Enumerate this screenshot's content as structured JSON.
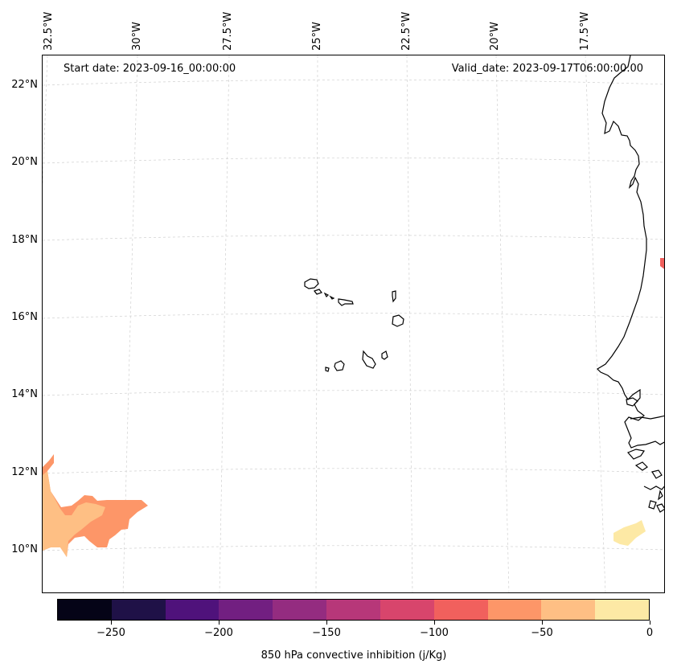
{
  "header": {
    "start_date": "Start date: 2023-09-16_00:00:00",
    "valid_date": "Valid_date: 2023-09-17T06:00:00.00"
  },
  "map": {
    "lon_labels": [
      "32.5°W",
      "30°W",
      "27.5°W",
      "25°W",
      "22.5°W",
      "20°W",
      "17.5°W"
    ],
    "lat_labels": [
      "22°N",
      "20°N",
      "18°N",
      "16°N",
      "14°N",
      "12°N",
      "10°N"
    ],
    "gridlines": "dashed light gray",
    "coastline_color": "#000000"
  },
  "colorbar": {
    "label": "850 hPa convective inhibition (j/Kg)",
    "levels": [
      -275,
      -250,
      -225,
      -200,
      -175,
      -150,
      -125,
      -100,
      -75,
      -50,
      -25,
      0
    ],
    "tick_labels": [
      "−250",
      "−200",
      "−150",
      "−100",
      "−50",
      "0"
    ],
    "colors": [
      "#050417",
      "#1f1147",
      "#4f127b",
      "#721f81",
      "#942c80",
      "#b73779",
      "#d8456c",
      "#f1605d",
      "#fd9668",
      "#febf84",
      "#fde9a5"
    ]
  }
}
